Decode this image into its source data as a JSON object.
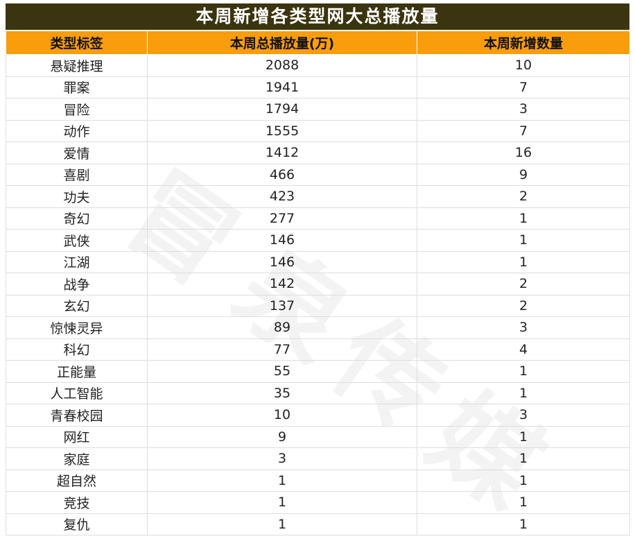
{
  "title": "本周新增各类型网大总播放量",
  "chart_data": {
    "type": "table",
    "title": "本周新增各类型网大总播放量",
    "columns": [
      "类型标签",
      "本周总播放量(万)",
      "本周新增数量"
    ],
    "rows": [
      [
        "悬疑推理",
        "2088",
        "10"
      ],
      [
        "罪案",
        "1941",
        "7"
      ],
      [
        "冒险",
        "1794",
        "3"
      ],
      [
        "动作",
        "1555",
        "7"
      ],
      [
        "爱情",
        "1412",
        "16"
      ],
      [
        "喜剧",
        "466",
        "9"
      ],
      [
        "功夫",
        "423",
        "2"
      ],
      [
        "奇幻",
        "277",
        "1"
      ],
      [
        "武侠",
        "146",
        "1"
      ],
      [
        "江湖",
        "146",
        "1"
      ],
      [
        "战争",
        "142",
        "2"
      ],
      [
        "玄幻",
        "137",
        "2"
      ],
      [
        "惊悚灵异",
        "89",
        "3"
      ],
      [
        "科幻",
        "77",
        "4"
      ],
      [
        "正能量",
        "55",
        "1"
      ],
      [
        "人工智能",
        "35",
        "1"
      ],
      [
        "青春校园",
        "10",
        "3"
      ],
      [
        "网红",
        "9",
        "1"
      ],
      [
        "家庭",
        "3",
        "1"
      ],
      [
        "超自然",
        "1",
        "1"
      ],
      [
        "竞技",
        "1",
        "1"
      ],
      [
        "复仇",
        "1",
        "1"
      ]
    ]
  },
  "colors": {
    "title_bg": "#3b3410",
    "header_bg": "#f99d0c"
  }
}
